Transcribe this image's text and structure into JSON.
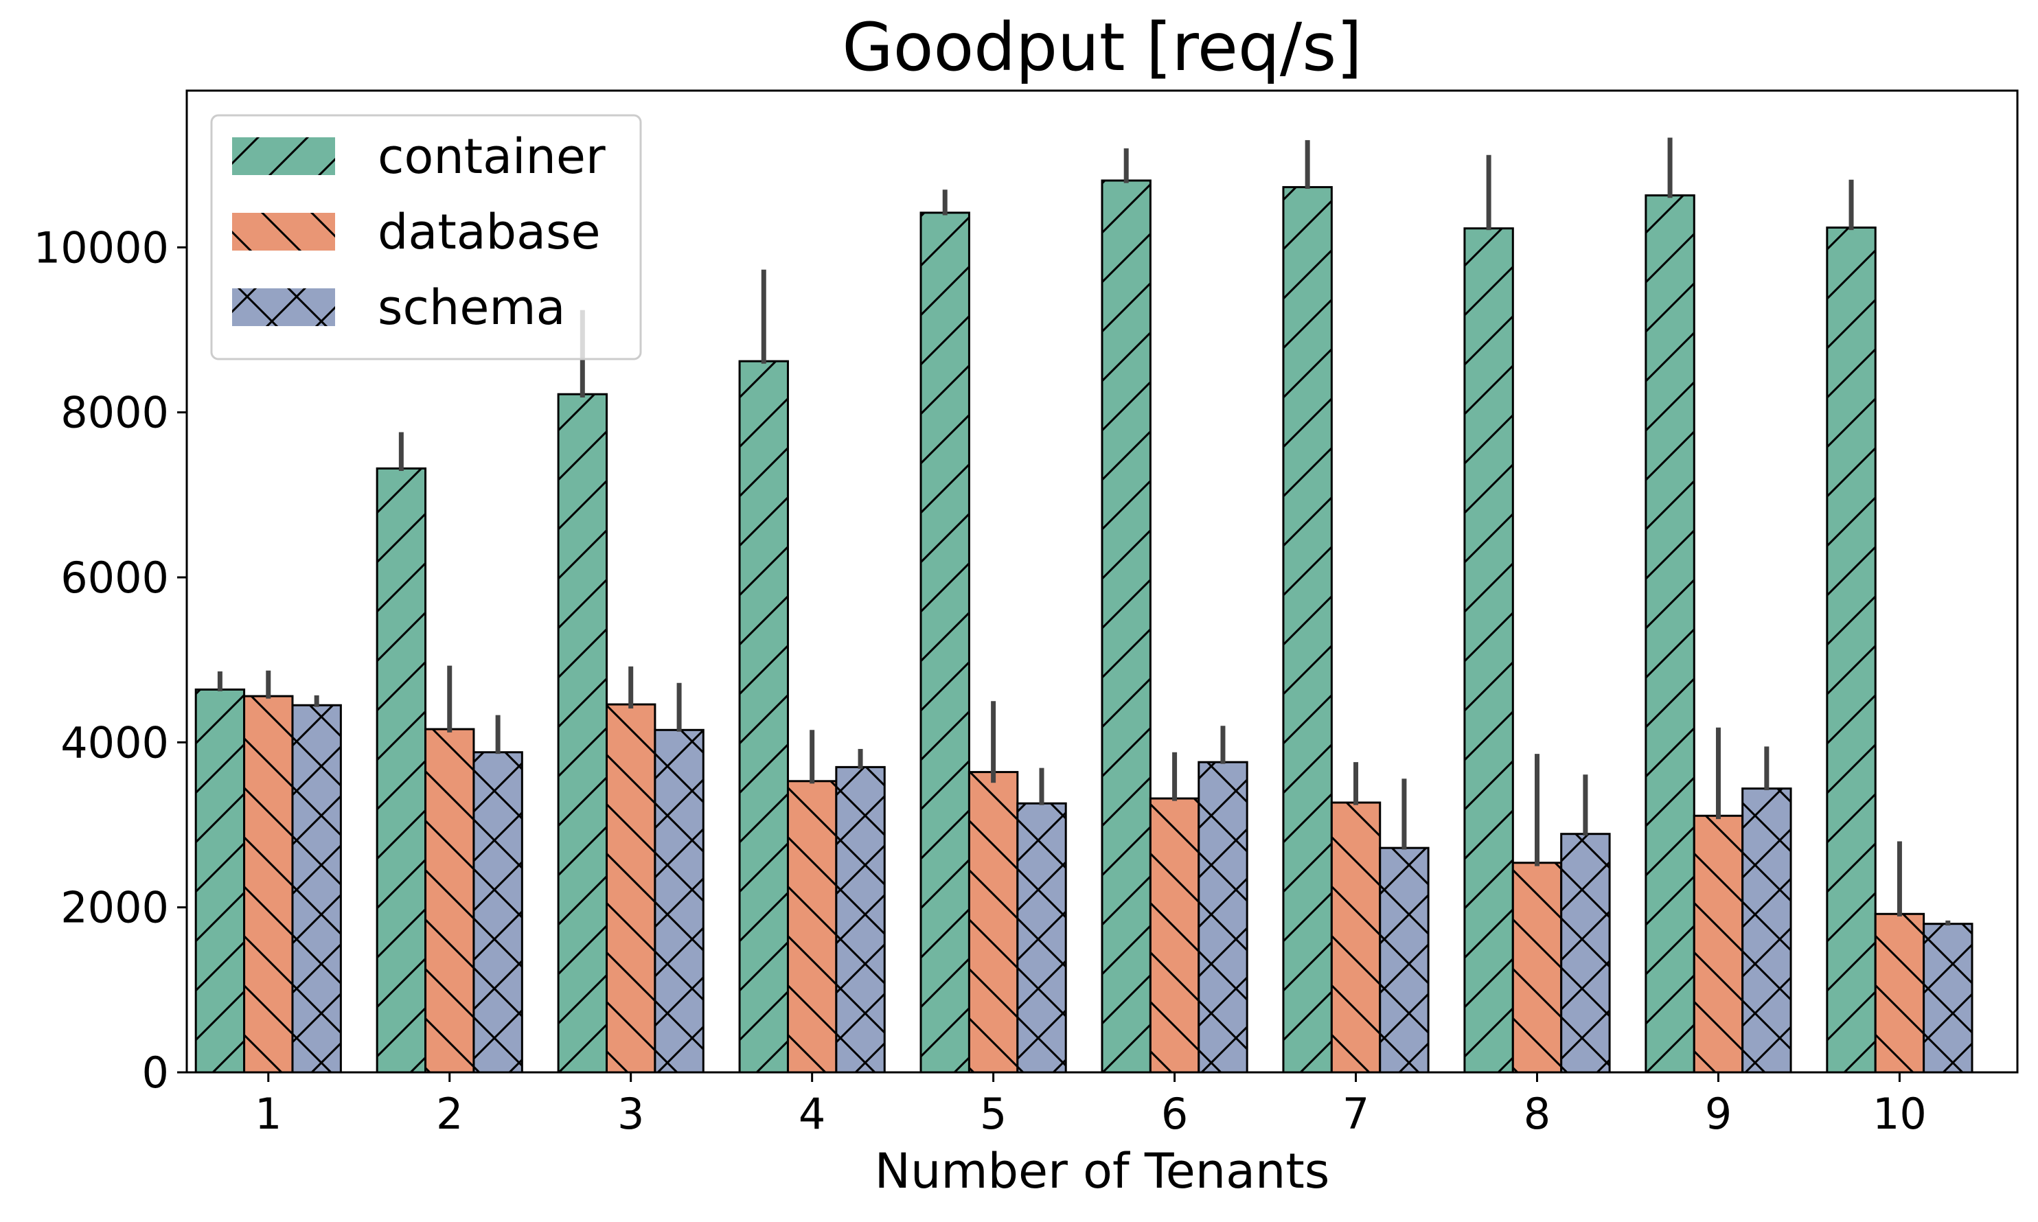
{
  "chart_data": {
    "type": "bar",
    "title": "Goodput [req/s]",
    "xlabel": "Number of Tenants",
    "ylabel": "",
    "categories": [
      "1",
      "2",
      "3",
      "4",
      "5",
      "6",
      "7",
      "8",
      "9",
      "10"
    ],
    "ylim": [
      0,
      11900
    ],
    "yticks": [
      0,
      2000,
      4000,
      6000,
      8000,
      10000
    ],
    "grid": false,
    "legend_position": "top-left",
    "series": [
      {
        "name": "container",
        "color": "#72b6a0",
        "hatch": "forward-diagonal",
        "values": [
          4640,
          7320,
          8220,
          8620,
          10420,
          10810,
          10730,
          10230,
          10630,
          10240
        ],
        "err_low": [
          4620,
          7290,
          8180,
          8590,
          10390,
          10780,
          10710,
          10210,
          10600,
          10210
        ],
        "err_high": [
          4860,
          7760,
          9240,
          9730,
          10700,
          11200,
          11300,
          11120,
          11330,
          10820
        ]
      },
      {
        "name": "database",
        "color": "#e99675",
        "hatch": "back-diagonal",
        "values": [
          4560,
          4160,
          4460,
          3530,
          3640,
          3320,
          3270,
          2540,
          3110,
          1920
        ],
        "err_low": [
          4530,
          4120,
          4410,
          3500,
          3510,
          3290,
          3240,
          2500,
          3070,
          1890
        ],
        "err_high": [
          4870,
          4930,
          4920,
          4150,
          4500,
          3880,
          3760,
          3860,
          4180,
          2800
        ]
      },
      {
        "name": "schema",
        "color": "#95a3c3",
        "hatch": "cross",
        "values": [
          4450,
          3880,
          4150,
          3700,
          3260,
          3760,
          2720,
          2890,
          3440,
          1800
        ],
        "err_low": [
          4430,
          3860,
          4130,
          3680,
          3240,
          3740,
          2700,
          2870,
          3420,
          1780
        ],
        "err_high": [
          4570,
          4330,
          4720,
          3920,
          3690,
          4200,
          3560,
          3610,
          3950,
          1840
        ]
      }
    ]
  }
}
